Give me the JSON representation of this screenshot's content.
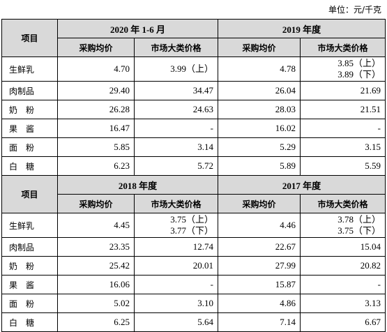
{
  "unit": "单位：元/千克",
  "sections": [
    {
      "item_header": "项目",
      "periods": [
        "2020 年 1-6 月",
        "2019 年度"
      ],
      "col_headers": [
        "采购均价",
        "市场大类价格",
        "采购均价",
        "市场大类价格"
      ],
      "rows": [
        {
          "name": "生鲜乳",
          "p1": "4.70",
          "m1": [
            "3.99（上）"
          ],
          "p2": "4.78",
          "m2": [
            "3.85（上）",
            "3.89（下）"
          ]
        },
        {
          "name": "肉制品",
          "p1": "29.40",
          "m1": [
            "34.47"
          ],
          "p2": "26.04",
          "m2": [
            "21.69"
          ]
        },
        {
          "name": "奶　粉",
          "p1": "26.28",
          "m1": [
            "24.63"
          ],
          "p2": "28.03",
          "m2": [
            "21.51"
          ]
        },
        {
          "name": "果　酱",
          "p1": "16.47",
          "m1": [
            "-"
          ],
          "p2": "16.02",
          "m2": [
            "-"
          ]
        },
        {
          "name": "面　粉",
          "p1": "5.85",
          "m1": [
            "3.14"
          ],
          "p2": "5.29",
          "m2": [
            "3.15"
          ]
        },
        {
          "name": "白　糖",
          "p1": "6.23",
          "m1": [
            "5.72"
          ],
          "p2": "5.89",
          "m2": [
            "5.59"
          ]
        }
      ]
    },
    {
      "item_header": "项目",
      "periods": [
        "2018 年度",
        "2017 年度"
      ],
      "col_headers": [
        "采购均价",
        "市场大类价格",
        "采购均价",
        "市场大类价格"
      ],
      "rows": [
        {
          "name": "生鲜乳",
          "p1": "4.45",
          "m1": [
            "3.75（上）",
            "3.77（下）"
          ],
          "p2": "4.46",
          "m2": [
            "3.78（上）",
            "3.75（下）"
          ]
        },
        {
          "name": "肉制品",
          "p1": "23.35",
          "m1": [
            "12.74"
          ],
          "p2": "22.67",
          "m2": [
            "15.04"
          ]
        },
        {
          "name": "奶　粉",
          "p1": "25.42",
          "m1": [
            "20.01"
          ],
          "p2": "27.99",
          "m2": [
            "20.82"
          ]
        },
        {
          "name": "果　酱",
          "p1": "16.06",
          "m1": [
            "-"
          ],
          "p2": "15.87",
          "m2": [
            "-"
          ]
        },
        {
          "name": "面　粉",
          "p1": "5.02",
          "m1": [
            "3.10"
          ],
          "p2": "4.86",
          "m2": [
            "3.13"
          ]
        },
        {
          "name": "白　糖",
          "p1": "6.25",
          "m1": [
            "5.64"
          ],
          "p2": "7.14",
          "m2": [
            "6.67"
          ]
        }
      ]
    }
  ]
}
